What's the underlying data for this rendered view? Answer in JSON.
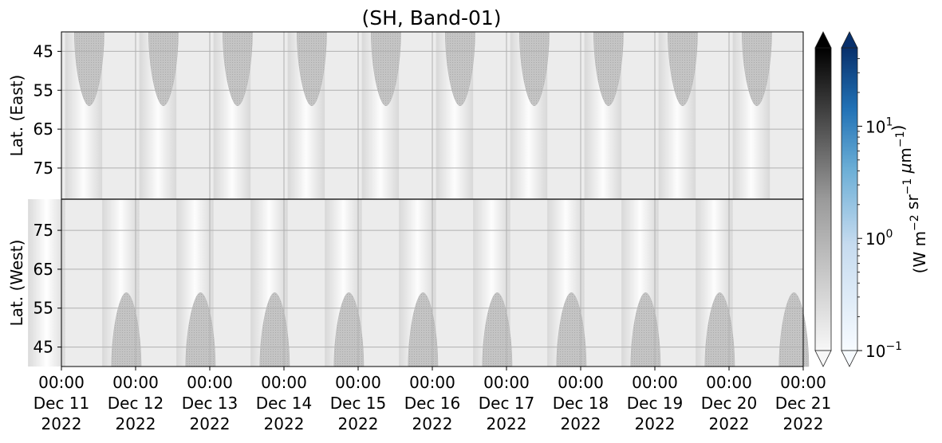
{
  "chart_data": {
    "type": "heatmap",
    "title": "(SH, Band-01)",
    "panels": [
      {
        "name": "east",
        "ylabel": "Lat. (East)",
        "y_ticks": [
          "45",
          "55",
          "65",
          "75"
        ],
        "y_tick_values": [
          45,
          55,
          65,
          75
        ],
        "ylim": [
          40,
          83
        ],
        "y_direction": "down"
      },
      {
        "name": "west",
        "ylabel": "Lat. (West)",
        "y_ticks": [
          "75",
          "65",
          "55",
          "45"
        ],
        "y_tick_values": [
          75,
          65,
          55,
          45
        ],
        "ylim": [
          83,
          40
        ],
        "y_direction": "up"
      }
    ],
    "x_ticks": [
      {
        "time": "00:00",
        "date": "Dec 11",
        "year": "2022"
      },
      {
        "time": "00:00",
        "date": "Dec 12",
        "year": "2022"
      },
      {
        "time": "00:00",
        "date": "Dec 13",
        "year": "2022"
      },
      {
        "time": "00:00",
        "date": "Dec 14",
        "year": "2022"
      },
      {
        "time": "00:00",
        "date": "Dec 15",
        "year": "2022"
      },
      {
        "time": "00:00",
        "date": "Dec 16",
        "year": "2022"
      },
      {
        "time": "00:00",
        "date": "Dec 17",
        "year": "2022"
      },
      {
        "time": "00:00",
        "date": "Dec 18",
        "year": "2022"
      },
      {
        "time": "00:00",
        "date": "Dec 19",
        "year": "2022"
      },
      {
        "time": "00:00",
        "date": "Dec 20",
        "year": "2022"
      },
      {
        "time": "00:00",
        "date": "Dec 21",
        "year": "2022"
      }
    ],
    "xlim": [
      "2022-12-11 00:00",
      "2022-12-21 00:00"
    ],
    "grid": true,
    "no_data_regions": [
      {
        "panel": "east",
        "lat_min": 40,
        "lat_max": 59,
        "centers": [
          "2022-12-11 09:00",
          "2022-12-12 09:00",
          "2022-12-13 09:00",
          "2022-12-14 09:00",
          "2022-12-15 09:00",
          "2022-12-16 09:00",
          "2022-12-17 09:00",
          "2022-12-18 09:00",
          "2022-12-19 09:00",
          "2022-12-20 09:00"
        ]
      },
      {
        "panel": "west",
        "lat_min": 40,
        "lat_max": 59,
        "centers": [
          "2022-12-11 21:00",
          "2022-12-12 21:00",
          "2022-12-13 21:00",
          "2022-12-14 21:00",
          "2022-12-15 21:00",
          "2022-12-16 21:00",
          "2022-12-17 21:00",
          "2022-12-18 21:00",
          "2022-12-19 21:00",
          "2022-12-20 21:00"
        ]
      }
    ],
    "colorbars": [
      {
        "name": "gray",
        "cmap": "Greys",
        "extend": "both",
        "top_color": "#000000",
        "bottom_color": "#f7f7f7"
      },
      {
        "name": "blue",
        "cmap": "Blues",
        "extend": "both",
        "top_color": "#08306b",
        "bottom_color": "#f7fbff",
        "scale": "log",
        "range": [
          0.1,
          50
        ],
        "tick_values": [
          0.1,
          1,
          10
        ],
        "tick_labels": [
          {
            "base": "10",
            "exp": "−1"
          },
          {
            "base": "10",
            "exp": "0"
          },
          {
            "base": "10",
            "exp": "1"
          }
        ],
        "label_parts": [
          {
            "t": "(W m"
          },
          {
            "sup": "−2"
          },
          {
            "t": " sr"
          },
          {
            "sup": "−1"
          },
          {
            "t": " "
          },
          {
            "t": "μ",
            "italic": true
          },
          {
            "t": "m"
          },
          {
            "sup": "−1"
          },
          {
            "t": ")"
          }
        ]
      }
    ]
  }
}
